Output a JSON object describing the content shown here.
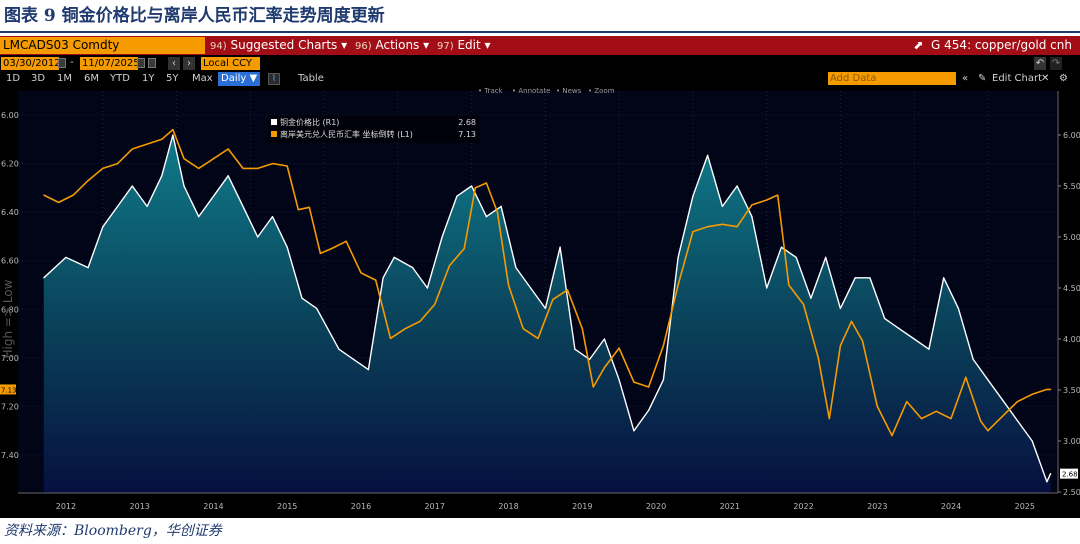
{
  "caption": "图表 9  铜金价格比与离岸人民币汇率走势周度更新",
  "source": "资料来源：Bloomberg，华创证券",
  "terminal": {
    "ticker": "LMCADS03 Comdty",
    "menus": [
      {
        "num": "94)",
        "label": "Suggested Charts",
        "arrow": "▾"
      },
      {
        "num": "96)",
        "label": "Actions",
        "arrow": "▾"
      },
      {
        "num": "97)",
        "label": "Edit",
        "arrow": "▾"
      }
    ],
    "window_title": "G 454: copper/gold cnh",
    "start_date": "03/30/2012",
    "end_date": "11/07/2025",
    "currency": "Local CCY",
    "ranges": [
      "1D",
      "3D",
      "1M",
      "6M",
      "YTD",
      "1Y",
      "5Y",
      "Max"
    ],
    "frequency": "Daily ▼",
    "table_label": "Table",
    "add_data_placeholder": "Add Data",
    "edit_chart_label": "Edit Chart",
    "toolbar_items": [
      "Track",
      "Annotate",
      "News",
      "Zoom"
    ],
    "y_side_label": "High => Low"
  },
  "colors": {
    "caption": "#1f3a6e",
    "cnh_line": "#f59b00",
    "ratio_line": "#ffffff",
    "area_top": "#0f7b8a",
    "bar_red": "#a30d16",
    "terminal_orange": "#f59b00"
  },
  "chart_data": {
    "type": "line",
    "x_ticks": [
      "2012",
      "2013",
      "2014",
      "2015",
      "2016",
      "2017",
      "2018",
      "2019",
      "2020",
      "2021",
      "2022",
      "2023",
      "2024",
      "2025"
    ],
    "y_left": {
      "label": "High => Low",
      "reversed": true,
      "ticks": [
        "6.00",
        "6.20",
        "6.40",
        "6.60",
        "6.80",
        "7.00",
        "7.20",
        "7.40"
      ],
      "range": [
        6.0,
        7.4
      ]
    },
    "y_right": {
      "ticks": [
        "6.00",
        "5.50",
        "5.00",
        "4.50",
        "4.00",
        "3.50",
        "3.00",
        "2.50"
      ],
      "range": [
        2.5,
        6.0
      ]
    },
    "legend": [
      {
        "label": "铜金价格比 (R1)",
        "value": "2.68"
      },
      {
        "label": "离岸美元兑人民币汇率 坐标倒转 (L1)",
        "value": "7.13"
      }
    ],
    "last_value_tags": {
      "left": "7.13",
      "right": "2.68"
    },
    "series": [
      {
        "name": "铜金价格比 (R1)",
        "axis": "right",
        "style": "area",
        "x": [
          2012.2,
          2012.5,
          2012.8,
          2013.0,
          2013.2,
          2013.4,
          2013.6,
          2013.8,
          2013.95,
          2014.1,
          2014.3,
          2014.5,
          2014.7,
          2014.9,
          2015.1,
          2015.3,
          2015.5,
          2015.7,
          2015.9,
          2016.05,
          2016.2,
          2016.4,
          2016.6,
          2016.8,
          2016.95,
          2017.2,
          2017.4,
          2017.6,
          2017.8,
          2018.0,
          2018.2,
          2018.4,
          2018.6,
          2018.8,
          2019.0,
          2019.2,
          2019.4,
          2019.6,
          2019.8,
          2020.0,
          2020.2,
          2020.4,
          2020.6,
          2020.8,
          2021.0,
          2021.2,
          2021.4,
          2021.6,
          2021.8,
          2022.0,
          2022.2,
          2022.4,
          2022.6,
          2022.8,
          2023.0,
          2023.2,
          2023.4,
          2023.6,
          2023.8,
          2024.0,
          2024.2,
          2024.4,
          2024.6,
          2024.8,
          2025.0,
          2025.2,
          2025.4,
          2025.6,
          2025.8,
          2025.85
        ],
        "values": [
          4.6,
          4.8,
          4.7,
          5.1,
          5.3,
          5.5,
          5.3,
          5.6,
          6.0,
          5.5,
          5.2,
          5.4,
          5.6,
          5.3,
          5.0,
          5.2,
          4.9,
          4.4,
          4.3,
          4.1,
          3.9,
          3.8,
          3.7,
          4.6,
          4.8,
          4.7,
          4.5,
          5.0,
          5.4,
          5.5,
          5.2,
          5.3,
          4.7,
          4.5,
          4.3,
          4.9,
          3.9,
          3.8,
          4.0,
          3.6,
          3.1,
          3.3,
          3.6,
          4.8,
          5.4,
          5.8,
          5.3,
          5.5,
          5.2,
          4.5,
          4.9,
          4.8,
          4.4,
          4.8,
          4.3,
          4.6,
          4.6,
          4.2,
          4.1,
          4.0,
          3.9,
          4.6,
          4.3,
          3.8,
          3.6,
          3.4,
          3.2,
          3.0,
          2.6,
          2.68
        ]
      },
      {
        "name": "离岸美元兑人民币汇率 坐标倒转 (L1)",
        "axis": "left",
        "style": "line",
        "x": [
          2012.2,
          2012.4,
          2012.6,
          2012.8,
          2013.0,
          2013.2,
          2013.4,
          2013.6,
          2013.8,
          2013.95,
          2014.1,
          2014.3,
          2014.5,
          2014.7,
          2014.9,
          2015.1,
          2015.3,
          2015.5,
          2015.65,
          2015.8,
          2015.95,
          2016.1,
          2016.3,
          2016.5,
          2016.7,
          2016.9,
          2017.1,
          2017.3,
          2017.5,
          2017.7,
          2017.9,
          2018.05,
          2018.2,
          2018.35,
          2018.5,
          2018.7,
          2018.9,
          2019.1,
          2019.3,
          2019.5,
          2019.65,
          2019.8,
          2020.0,
          2020.2,
          2020.4,
          2020.6,
          2020.8,
          2021.0,
          2021.2,
          2021.4,
          2021.6,
          2021.8,
          2022.0,
          2022.15,
          2022.3,
          2022.5,
          2022.7,
          2022.85,
          2023.0,
          2023.15,
          2023.3,
          2023.5,
          2023.7,
          2023.9,
          2024.1,
          2024.3,
          2024.5,
          2024.7,
          2024.9,
          2025.0,
          2025.2,
          2025.4,
          2025.6,
          2025.8,
          2025.85
        ],
        "values": [
          6.33,
          6.36,
          6.33,
          6.27,
          6.22,
          6.2,
          6.14,
          6.12,
          6.1,
          6.06,
          6.18,
          6.22,
          6.18,
          6.14,
          6.22,
          6.22,
          6.2,
          6.21,
          6.39,
          6.38,
          6.57,
          6.55,
          6.52,
          6.65,
          6.68,
          6.92,
          6.88,
          6.85,
          6.78,
          6.62,
          6.55,
          6.3,
          6.28,
          6.4,
          6.7,
          6.88,
          6.92,
          6.76,
          6.72,
          6.88,
          7.12,
          7.04,
          6.96,
          7.1,
          7.12,
          6.95,
          6.7,
          6.48,
          6.46,
          6.45,
          6.46,
          6.37,
          6.35,
          6.33,
          6.7,
          6.78,
          7.0,
          7.25,
          6.95,
          6.85,
          6.93,
          7.2,
          7.32,
          7.18,
          7.25,
          7.22,
          7.25,
          7.08,
          7.26,
          7.3,
          7.24,
          7.18,
          7.15,
          7.13,
          7.13
        ]
      }
    ]
  }
}
